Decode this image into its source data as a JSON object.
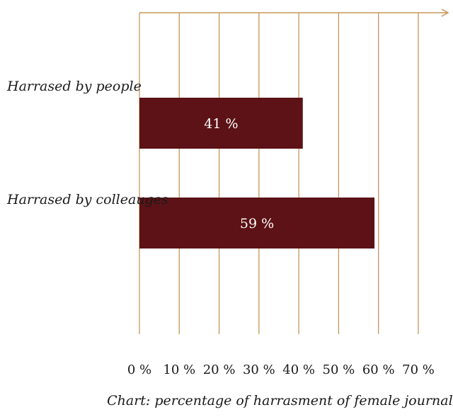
{
  "chart_data": {
    "type": "bar",
    "orientation": "horizontal",
    "categories": [
      "Harrased by people",
      "Harrased by colleauges"
    ],
    "values": [
      41,
      59
    ],
    "data_labels": [
      "41 %",
      "59 %"
    ],
    "xlim": [
      0,
      70
    ],
    "x_ticks": [
      0,
      10,
      20,
      30,
      40,
      50,
      60,
      70
    ],
    "x_tick_labels": [
      "0 %",
      "10 %",
      "20 %",
      "30 %",
      "40 %",
      "50 %",
      "60 %",
      "70 %"
    ],
    "caption": "Chart: percentage of harrasment of female journalists",
    "grid": "vertical",
    "legend": "none",
    "colors": {
      "bar": "#5c1216",
      "grid": "#c8955a",
      "axis": "#c8955a"
    }
  }
}
